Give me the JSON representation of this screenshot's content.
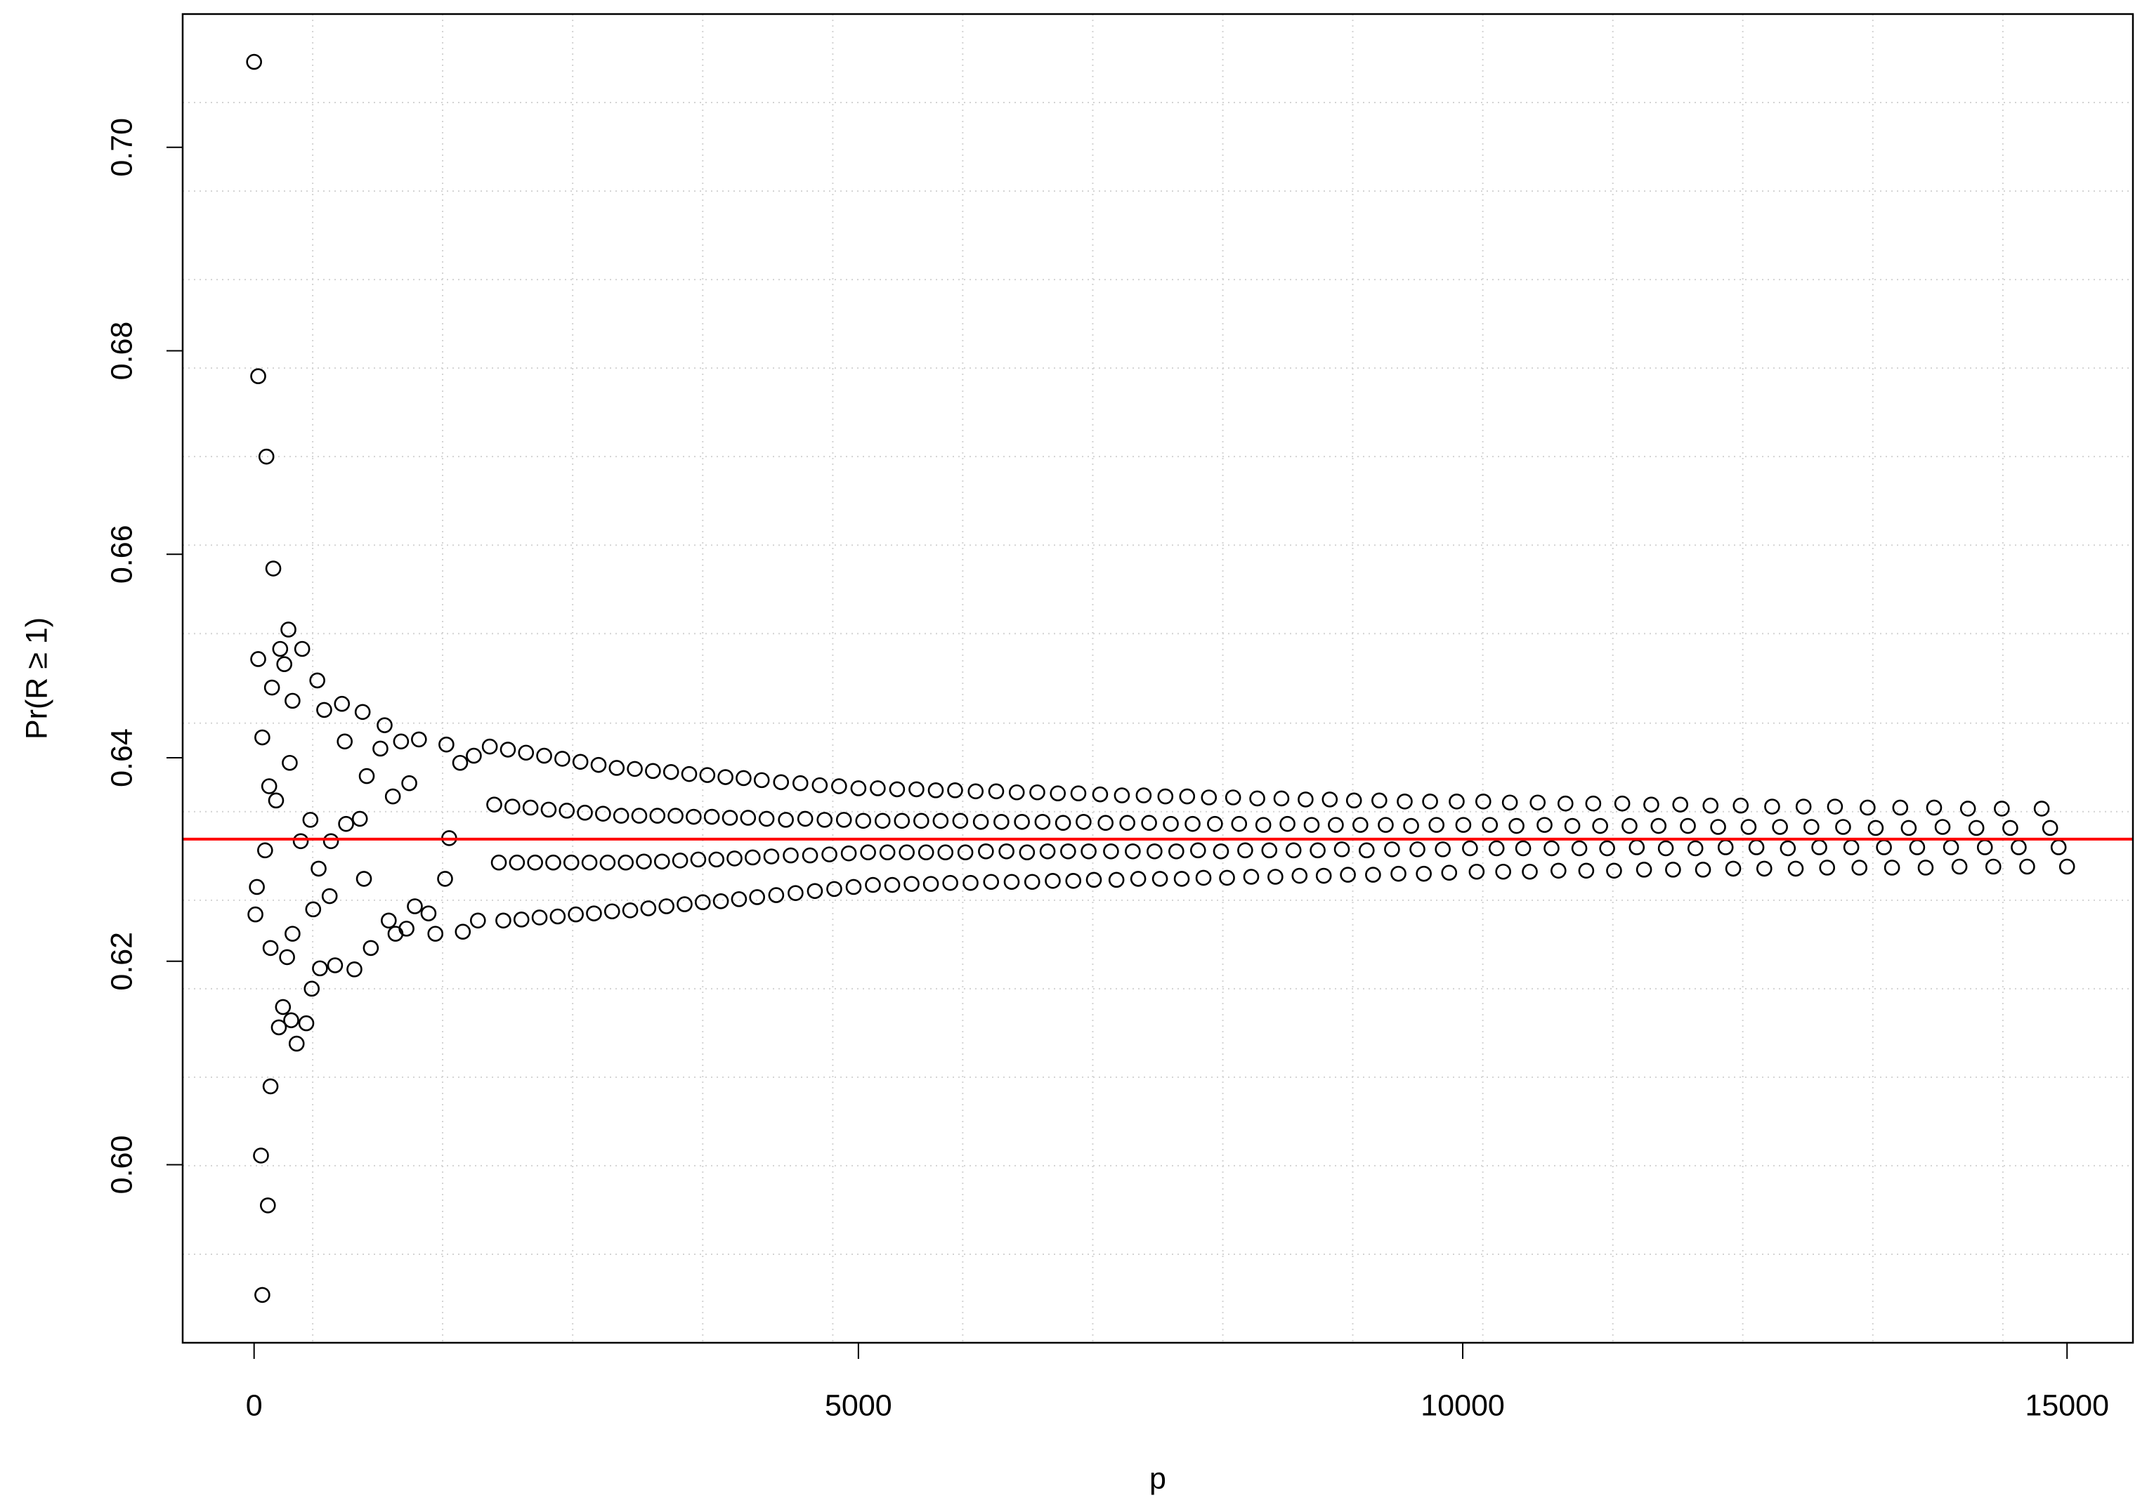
{
  "chart_data": {
    "type": "scatter",
    "xlabel": "p",
    "ylabel": "Pr(R ≥ 1)",
    "xlim": [
      -591,
      15545
    ],
    "ylim": [
      0.5825,
      0.7131
    ],
    "xticks": [
      0,
      5000,
      10000,
      15000
    ],
    "yticks": [
      {
        "value": 0.6,
        "label": "0.60"
      },
      0.62,
      0.64,
      0.66,
      0.68,
      {
        "value": 0.7,
        "label": "0.70"
      }
    ],
    "grid": true,
    "grid_color": "#d3d3d3",
    "xgrid": [
      485,
      1560,
      2636,
      3712,
      4788,
      5863,
      6939,
      8015,
      9090,
      10166,
      11242,
      12317,
      13393,
      14469
    ],
    "ygrid": [
      0.5912,
      0.5999,
      0.6086,
      0.6173,
      0.626,
      0.6347,
      0.6434,
      0.6522,
      0.6609,
      0.6696,
      0.6783,
      0.687,
      0.6957,
      0.7044
    ],
    "color": "#000000",
    "hlines": [
      {
        "value": 0.632,
        "color": "#ff0000"
      }
    ],
    "x": [
      0,
      34,
      102,
      159,
      34,
      68,
      284,
      398,
      216,
      250,
      148,
      523,
      318,
      580,
      727,
      898,
      23,
      11,
      91,
      125,
      182,
      295,
      136,
      273,
      318,
      239,
      205,
      307,
      352,
      432,
      477,
      136,
      57,
      114,
      68,
      545,
      670,
      830,
      966,
      489,
      625,
      466,
      386,
      534,
      636,
      761,
      875,
      750,
      1045,
      1080,
      1216,
      1364,
      932,
      1148,
      1284,
      909,
      1114,
      1170,
      1261,
      1500,
      1330,
      1443,
      1580,
      1591,
      1705,
      1818,
      1727,
      1852,
      1614,
      1950,
      1987,
      2025,
      2062,
      2100,
      2137,
      2175,
      2212,
      2250,
      2287,
      2325,
      2362,
      2400,
      2437,
      2475,
      2512,
      2550,
      2587,
      2625,
      2662,
      2700,
      2737,
      2775,
      2812,
      2850,
      2887,
      2925,
      2962,
      3000,
      3037,
      3075,
      3112,
      3150,
      3187,
      3225,
      3262,
      3300,
      3337,
      3375,
      3412,
      3450,
      3487,
      3525,
      3562,
      3600,
      3637,
      3675,
      3712,
      3750,
      3787,
      3825,
      3862,
      3900,
      3937,
      3975,
      4012,
      4050,
      4087,
      4125,
      4162,
      4200,
      4240,
      4280,
      4320,
      4360,
      4400,
      4440,
      4480,
      4520,
      4560,
      4600,
      4640,
      4680,
      4720,
      4760,
      4800,
      4840,
      4880,
      4920,
      4960,
      5000,
      5040,
      5080,
      5120,
      5160,
      5200,
      5240,
      5280,
      5320,
      5360,
      5400,
      5440,
      5480,
      5520,
      5560,
      5600,
      5640,
      5680,
      5720,
      5760,
      5800,
      5843,
      5885,
      5928,
      5970,
      6013,
      6055,
      6098,
      6140,
      6183,
      6225,
      6268,
      6310,
      6353,
      6395,
      6438,
      6480,
      6523,
      6565,
      6608,
      6650,
      6693,
      6735,
      6778,
      6820,
      6863,
      6905,
      6948,
      7000,
      7045,
      7090,
      7135,
      7180,
      7225,
      7270,
      7315,
      7360,
      7405,
      7450,
      7495,
      7540,
      7585,
      7630,
      7675,
      7720,
      7765,
      7810,
      7855,
      7900,
      7950,
      8000,
      8050,
      8100,
      8150,
      8200,
      8250,
      8300,
      8350,
      8400,
      8450,
      8500,
      8550,
      8600,
      8650,
      8700,
      8750,
      8800,
      8850,
      8900,
      8950,
      9000,
      9050,
      9100,
      9153,
      9205,
      9258,
      9310,
      9363,
      9415,
      9468,
      9520,
      9573,
      9625,
      9678,
      9730,
      9783,
      9835,
      9888,
      9950,
      10005,
      10060,
      10115,
      10170,
      10225,
      10280,
      10335,
      10390,
      10445,
      10500,
      10555,
      10620,
      10677,
      10735,
      10792,
      10850,
      10907,
      10965,
      11022,
      11080,
      11137,
      11195,
      11252,
      11320,
      11380,
      11440,
      11500,
      11560,
      11620,
      11680,
      11740,
      11800,
      11863,
      11925,
      11988,
      12050,
      12113,
      12175,
      12238,
      12300,
      12365,
      12430,
      12495,
      12560,
      12625,
      12690,
      12755,
      12820,
      12885,
      12950,
      13015,
      13080,
      13147,
      13215,
      13282,
      13350,
      13417,
      13485,
      13552,
      13620,
      13690,
      13760,
      13830,
      13900,
      13970,
      14040,
      14110,
      14180,
      14250,
      14320,
      14390,
      14460,
      14530,
      14600,
      14670,
      14790,
      14860,
      14930,
      15000
    ],
    "values": [
      0.7084,
      0.6775,
      0.6696,
      0.6586,
      0.6497,
      0.642,
      0.6526,
      0.6507,
      0.6507,
      0.6492,
      0.6469,
      0.6476,
      0.6456,
      0.6447,
      0.6453,
      0.6445,
      0.6273,
      0.6246,
      0.6309,
      0.6372,
      0.6358,
      0.6395,
      0.6213,
      0.6204,
      0.6227,
      0.6155,
      0.6135,
      0.6142,
      0.6119,
      0.6139,
      0.6173,
      0.6077,
      0.6009,
      0.596,
      0.5872,
      0.6193,
      0.6196,
      0.6192,
      0.6213,
      0.6251,
      0.6264,
      0.6339,
      0.6318,
      0.6291,
      0.6318,
      0.6335,
      0.634,
      0.6416,
      0.6409,
      0.6432,
      0.6416,
      0.6418,
      0.6382,
      0.6362,
      0.6375,
      0.6281,
      0.624,
      0.6227,
      0.6232,
      0.6227,
      0.6254,
      0.6247,
      0.6281,
      0.6413,
      0.6395,
      0.6402,
      0.6229,
      0.624,
      0.6321,
      0.6411,
      0.6354,
      0.6297,
      0.624,
      0.6408,
      0.6352,
      0.6297,
      0.6241,
      0.6405,
      0.6351,
      0.6297,
      0.6243,
      0.6402,
      0.6349,
      0.6297,
      0.6244,
      0.6399,
      0.6348,
      0.6297,
      0.6246,
      0.6396,
      0.6346,
      0.6297,
      0.6247,
      0.6393,
      0.6345,
      0.6297,
      0.6249,
      0.639,
      0.6343,
      0.6297,
      0.625,
      0.6389,
      0.6343,
      0.6298,
      0.6252,
      0.6387,
      0.6343,
      0.6298,
      0.6254,
      0.6386,
      0.6343,
      0.6299,
      0.6256,
      0.6384,
      0.6342,
      0.63,
      0.6258,
      0.6383,
      0.6342,
      0.63,
      0.6259,
      0.6381,
      0.6341,
      0.6301,
      0.6261,
      0.638,
      0.6341,
      0.6302,
      0.6263,
      0.6378,
      0.634,
      0.6303,
      0.6265,
      0.6376,
      0.6339,
      0.6304,
      0.6267,
      0.6375,
      0.634,
      0.6304,
      0.6269,
      0.6373,
      0.6339,
      0.6305,
      0.6271,
      0.6372,
      0.6339,
      0.6306,
      0.6273,
      0.637,
      0.6338,
      0.6307,
      0.6275,
      0.637,
      0.6338,
      0.6307,
      0.6275,
      0.6369,
      0.6338,
      0.6307,
      0.6276,
      0.6369,
      0.6338,
      0.6307,
      0.6276,
      0.6368,
      0.6338,
      0.6307,
      0.6277,
      0.6368,
      0.6338,
      0.6307,
      0.6277,
      0.6367,
      0.6337,
      0.6308,
      0.6278,
      0.6367,
      0.6337,
      0.6308,
      0.6278,
      0.6366,
      0.6337,
      0.6307,
      0.6278,
      0.6366,
      0.6337,
      0.6308,
      0.6279,
      0.6365,
      0.6336,
      0.6308,
      0.6279,
      0.6365,
      0.6337,
      0.6308,
      0.628,
      0.6364,
      0.6336,
      0.6308,
      0.628,
      0.6363,
      0.6336,
      0.6308,
      0.6281,
      0.6363,
      0.6336,
      0.6308,
      0.6281,
      0.6362,
      0.6335,
      0.6308,
      0.6281,
      0.6362,
      0.6335,
      0.6309,
      0.6282,
      0.6361,
      0.6335,
      0.6308,
      0.6282,
      0.6361,
      0.6335,
      0.6309,
      0.6283,
      0.636,
      0.6334,
      0.6309,
      0.6283,
      0.636,
      0.6335,
      0.6309,
      0.6284,
      0.6359,
      0.6334,
      0.6309,
      0.6284,
      0.6359,
      0.6334,
      0.631,
      0.6285,
      0.6358,
      0.6334,
      0.6309,
      0.6285,
      0.6358,
      0.6334,
      0.631,
      0.6286,
      0.6357,
      0.6333,
      0.631,
      0.6286,
      0.6357,
      0.6334,
      0.631,
      0.6287,
      0.6357,
      0.6334,
      0.6311,
      0.6288,
      0.6357,
      0.6334,
      0.6311,
      0.6288,
      0.6356,
      0.6333,
      0.6311,
      0.6288,
      0.6356,
      0.6334,
      0.6311,
      0.6289,
      0.6355,
      0.6333,
      0.6311,
      0.6289,
      0.6355,
      0.6333,
      0.6311,
      0.6289,
      0.6355,
      0.6333,
      0.6312,
      0.629,
      0.6354,
      0.6333,
      0.6311,
      0.629,
      0.6354,
      0.6333,
      0.6311,
      0.629,
      0.6353,
      0.6332,
      0.6312,
      0.6291,
      0.6353,
      0.6332,
      0.6312,
      0.6291,
      0.6352,
      0.6332,
      0.6311,
      0.6291,
      0.6352,
      0.6332,
      0.6312,
      0.6292,
      0.6352,
      0.6332,
      0.6312,
      0.6292,
      0.6351,
      0.6331,
      0.6312,
      0.6292,
      0.6351,
      0.6331,
      0.6312,
      0.6292,
      0.6351,
      0.6332,
      0.6312,
      0.6293,
      0.635,
      0.6331,
      0.6312,
      0.6293,
      0.635,
      0.6331,
      0.6312,
      0.6293,
      0.635,
      0.6331,
      0.6312,
      0.6293
    ]
  }
}
